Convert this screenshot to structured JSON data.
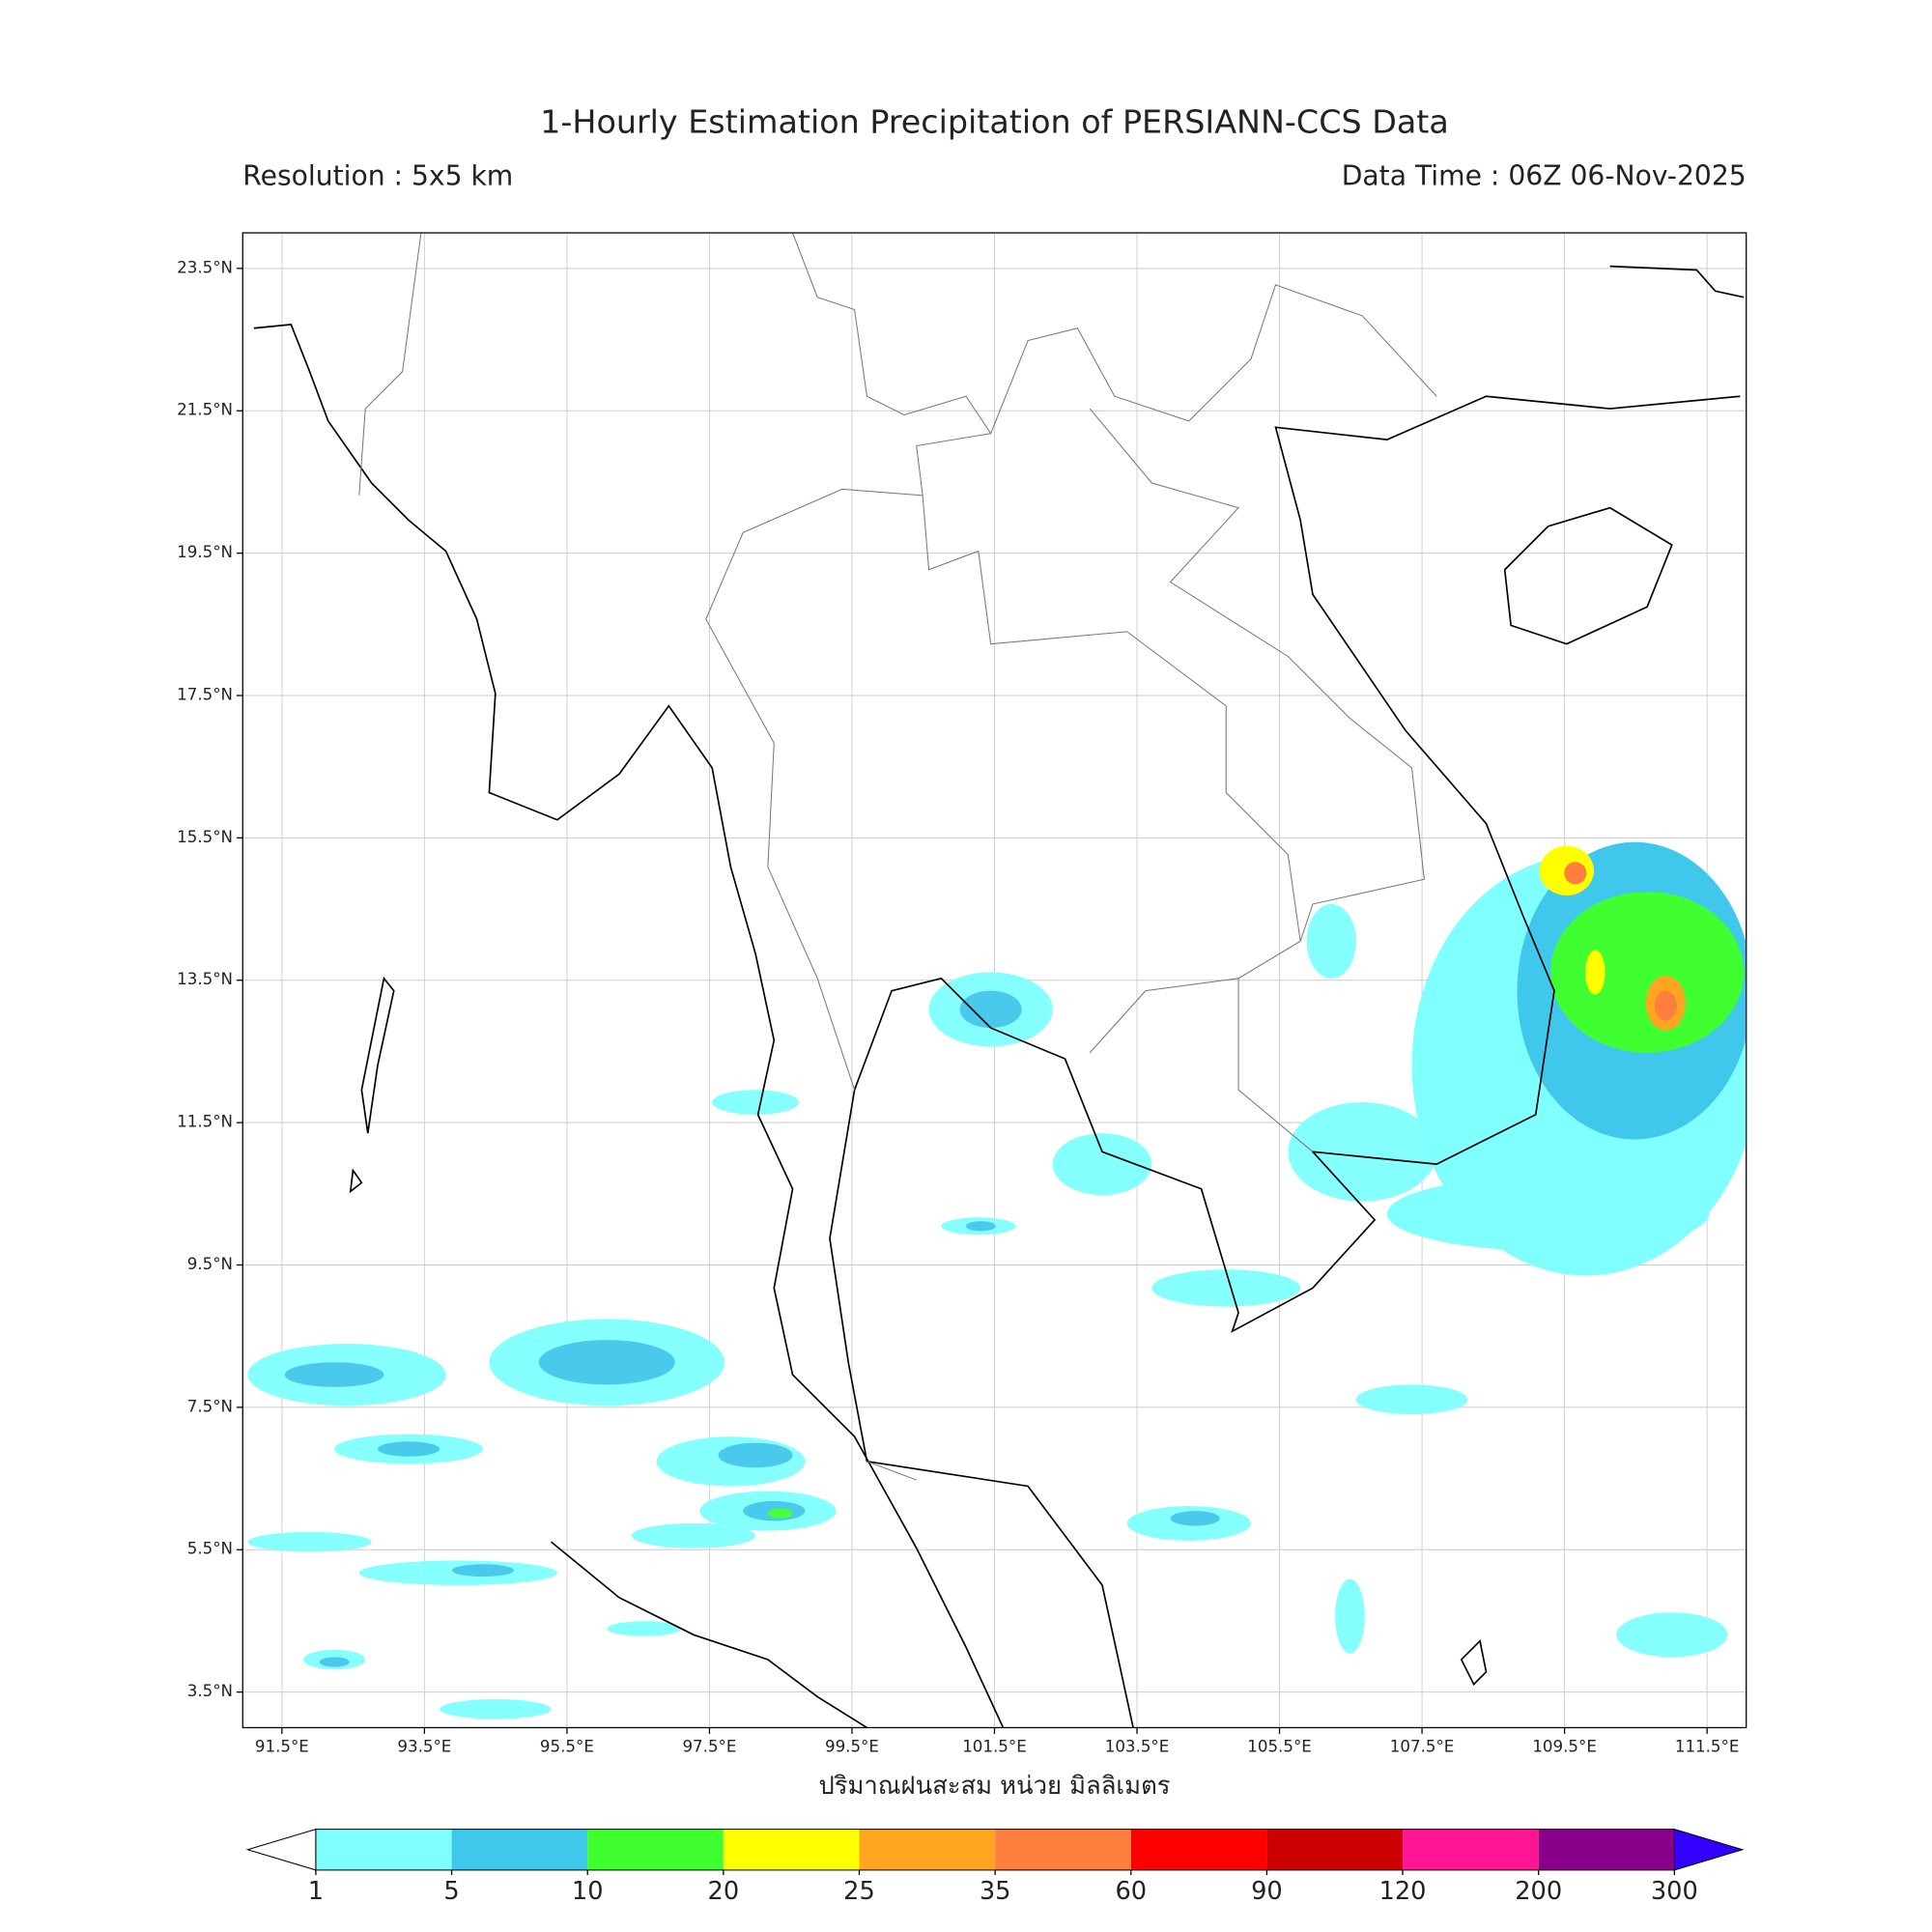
{
  "title": "1-Hourly Estimation Precipitation of PERSIANN-CCS Data",
  "subtitle_left": "Resolution : 5x5 km",
  "subtitle_right": "Data Time : 06Z 06-Nov-2025",
  "map": {
    "xlim": [
      90.95,
      112.05
    ],
    "ylim": [
      3.0,
      24.0
    ],
    "grid": true,
    "xticks": [
      {
        "value": 91.5,
        "label": "91.5°E"
      },
      {
        "value": 93.5,
        "label": "93.5°E"
      },
      {
        "value": 95.5,
        "label": "95.5°E"
      },
      {
        "value": 97.5,
        "label": "97.5°E"
      },
      {
        "value": 99.5,
        "label": "99.5°E"
      },
      {
        "value": 101.5,
        "label": "101.5°E"
      },
      {
        "value": 103.5,
        "label": "103.5°E"
      },
      {
        "value": 105.5,
        "label": "105.5°E"
      },
      {
        "value": 107.5,
        "label": "107.5°E"
      },
      {
        "value": 109.5,
        "label": "109.5°E"
      },
      {
        "value": 111.5,
        "label": "111.5°E"
      }
    ],
    "yticks": [
      {
        "value": 23.5,
        "label": "23.5°N"
      },
      {
        "value": 21.5,
        "label": "21.5°N"
      },
      {
        "value": 19.5,
        "label": "19.5°N"
      },
      {
        "value": 17.5,
        "label": "17.5°N"
      },
      {
        "value": 15.5,
        "label": "15.5°N"
      },
      {
        "value": 13.5,
        "label": "13.5°N"
      },
      {
        "value": 11.5,
        "label": "11.5°N"
      },
      {
        "value": 9.5,
        "label": "9.5°N"
      },
      {
        "value": 7.5,
        "label": "7.5°N"
      },
      {
        "value": 5.5,
        "label": "5.5°N"
      },
      {
        "value": 3.5,
        "label": "3.5°N"
      }
    ]
  },
  "xlabel": "ปริมาณฝนสะสม หน่วย มิลลิเมตร",
  "colorbar": {
    "levels": [
      1,
      5,
      10,
      20,
      25,
      35,
      60,
      90,
      120,
      200,
      300
    ],
    "colors": [
      "#80ffff",
      "#40c8ec",
      "#40ff30",
      "#ffff00",
      "#ffa520",
      "#ff7f3f",
      "#ff0000",
      "#cc0000",
      "#ff1493",
      "#8b008b"
    ],
    "under_color": "#ffffff",
    "over_color": "#3300ff"
  }
}
